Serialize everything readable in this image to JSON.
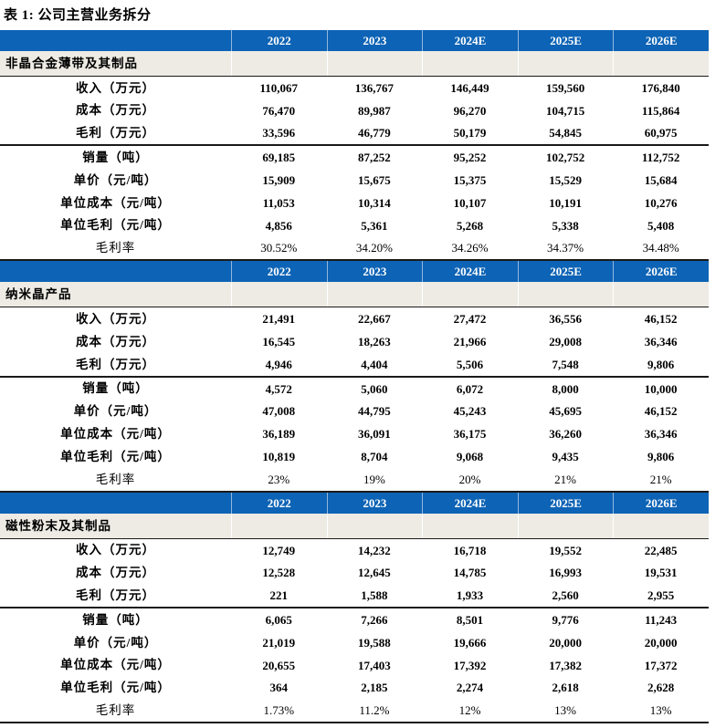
{
  "title": "表 1:  公司主营业务拆分",
  "columns": [
    "2022",
    "2023",
    "2024E",
    "2025E",
    "2026E"
  ],
  "row_labels": [
    "收入（万元）",
    "成本（万元）",
    "毛利（万元）",
    "销量（吨）",
    "单价（元/吨）",
    "单位成本（元/吨）",
    "单位毛利（元/吨）",
    "毛利率"
  ],
  "sections": [
    {
      "name": "非晶合金薄带及其制品",
      "rows": [
        [
          "110,067",
          "136,767",
          "146,449",
          "159,560",
          "176,840"
        ],
        [
          "76,470",
          "89,987",
          "96,270",
          "104,715",
          "115,864"
        ],
        [
          "33,596",
          "46,779",
          "50,179",
          "54,845",
          "60,975"
        ],
        [
          "69,185",
          "87,252",
          "95,252",
          "102,752",
          "112,752"
        ],
        [
          "15,909",
          "15,675",
          "15,375",
          "15,529",
          "15,684"
        ],
        [
          "11,053",
          "10,314",
          "10,107",
          "10,191",
          "10,276"
        ],
        [
          "4,856",
          "5,361",
          "5,268",
          "5,338",
          "5,408"
        ],
        [
          "30.52%",
          "34.20%",
          "34.26%",
          "34.37%",
          "34.48%"
        ]
      ]
    },
    {
      "name": "纳米晶产品",
      "rows": [
        [
          "21,491",
          "22,667",
          "27,472",
          "36,556",
          "46,152"
        ],
        [
          "16,545",
          "18,263",
          "21,966",
          "29,008",
          "36,346"
        ],
        [
          "4,946",
          "4,404",
          "5,506",
          "7,548",
          "9,806"
        ],
        [
          "4,572",
          "5,060",
          "6,072",
          "8,000",
          "10,000"
        ],
        [
          "47,008",
          "44,795",
          "45,243",
          "45,695",
          "46,152"
        ],
        [
          "36,189",
          "36,091",
          "36,175",
          "36,260",
          "36,346"
        ],
        [
          "10,819",
          "8,704",
          "9,068",
          "9,435",
          "9,806"
        ],
        [
          "23%",
          "19%",
          "20%",
          "21%",
          "21%"
        ]
      ]
    },
    {
      "name": "磁性粉末及其制品",
      "rows": [
        [
          "12,749",
          "14,232",
          "16,718",
          "19,552",
          "22,485"
        ],
        [
          "12,528",
          "12,645",
          "14,785",
          "16,993",
          "19,531"
        ],
        [
          "221",
          "1,588",
          "1,933",
          "2,560",
          "2,955"
        ],
        [
          "6,065",
          "7,266",
          "8,501",
          "9,776",
          "11,243"
        ],
        [
          "21,019",
          "19,588",
          "19,666",
          "20,000",
          "20,000"
        ],
        [
          "20,655",
          "17,403",
          "17,392",
          "17,382",
          "17,372"
        ],
        [
          "364",
          "2,185",
          "2,274",
          "2,618",
          "2,628"
        ],
        [
          "1.73%",
          "11.2%",
          "12%",
          "13%",
          "13%"
        ]
      ]
    }
  ],
  "colors": {
    "header_blue": "#0d63b5",
    "section_bg": "#edebe4",
    "border_dark": "#1a1a1a",
    "header_text": "#ffffff"
  }
}
